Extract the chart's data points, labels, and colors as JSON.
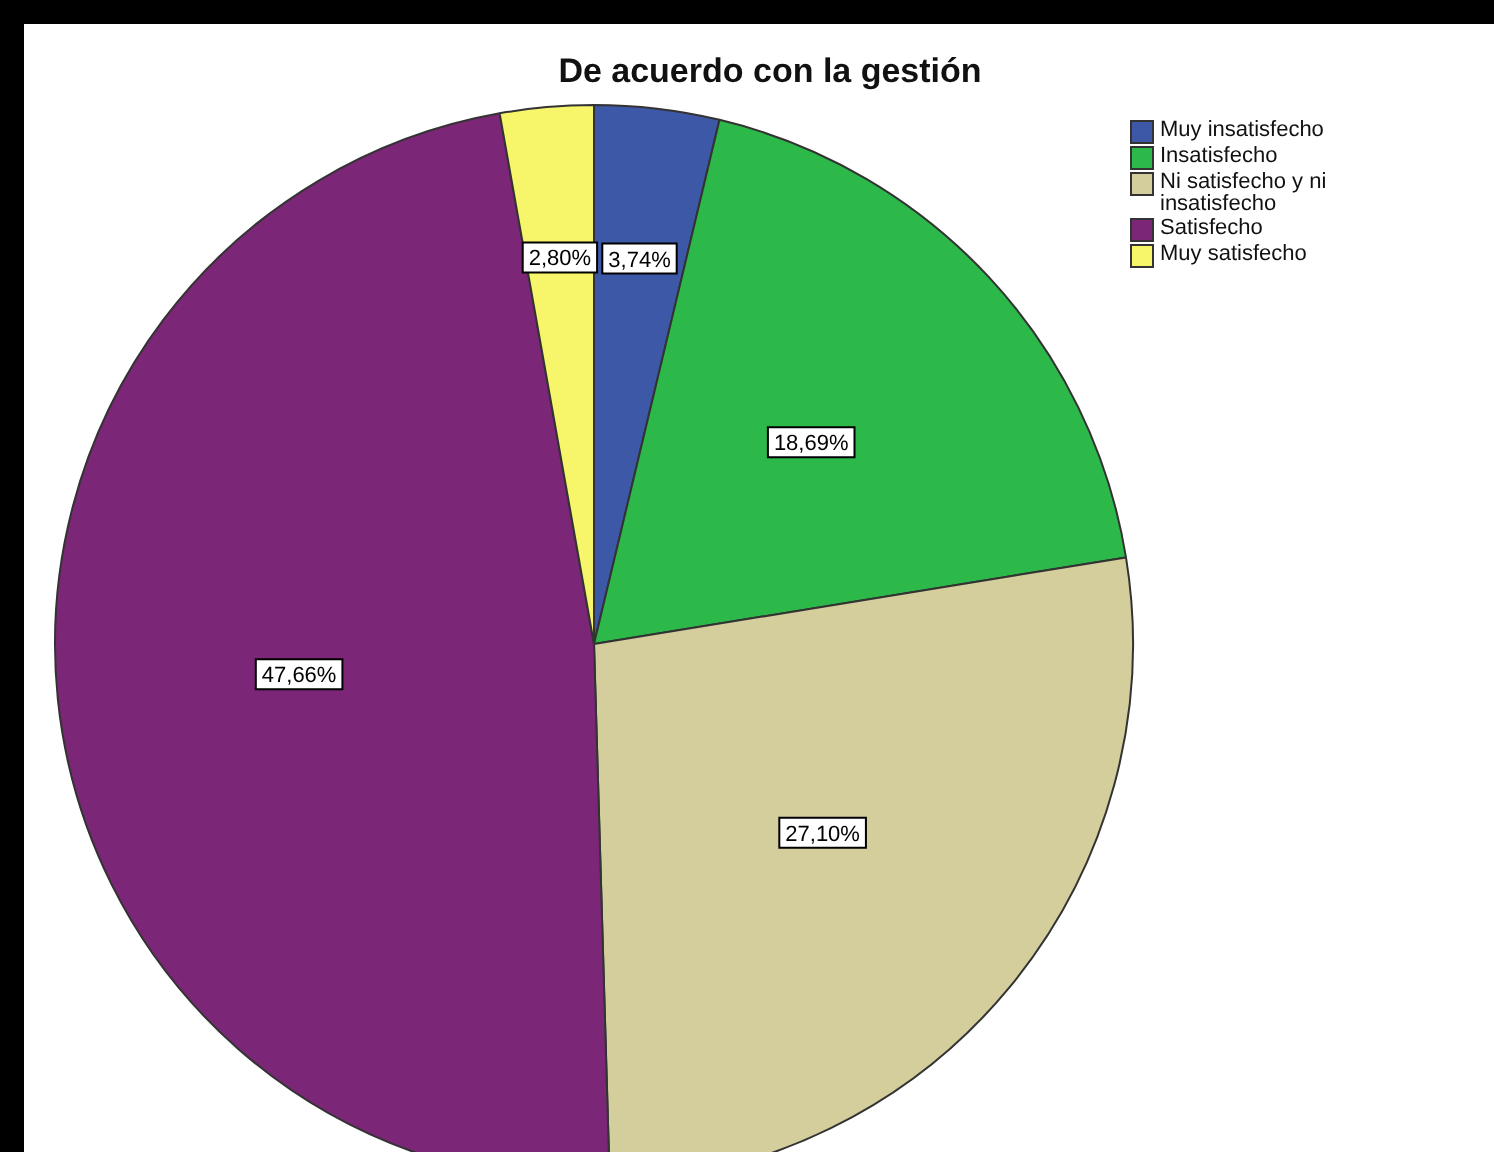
{
  "chart_data": {
    "type": "pie",
    "title": "De acuerdo con la gestión",
    "categories": [
      "Muy insatisfecho",
      "Insatisfecho",
      "Ni satisfecho y ni insatisfecho",
      "Satisfecho",
      "Muy satisfecho"
    ],
    "values": [
      3.74,
      18.69,
      27.1,
      47.66,
      2.8
    ],
    "colors": [
      "#3e58a8",
      "#2db84a",
      "#d3ce9c",
      "#7b2677",
      "#f7f56a"
    ],
    "value_labels": [
      "3,74%",
      "18,69%",
      "27,10%",
      "47,66%",
      "2,80%"
    ],
    "legend": "top right"
  }
}
